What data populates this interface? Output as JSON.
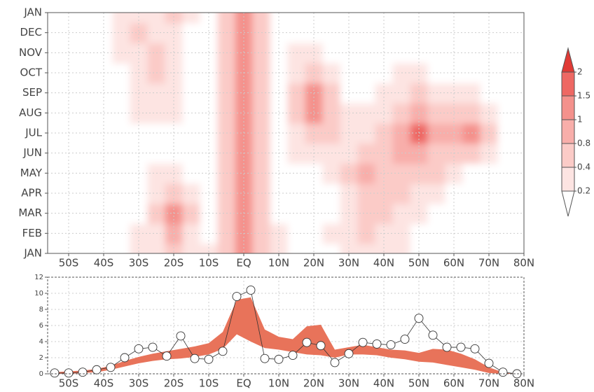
{
  "chart_data": [
    {
      "type": "heatmap",
      "x": [
        -55,
        -50,
        -45,
        -40,
        -35,
        -30,
        -25,
        -20,
        -15,
        -10,
        -5,
        0,
        5,
        10,
        15,
        20,
        25,
        30,
        35,
        40,
        45,
        50,
        55,
        60,
        65,
        70,
        75,
        80
      ],
      "y": [
        0,
        1,
        2,
        3,
        4,
        5,
        6,
        7,
        8,
        9,
        10,
        11,
        12
      ],
      "z": [
        [
          0,
          0,
          0,
          0,
          0,
          0.3,
          0.3,
          0.5,
          0.3,
          0.2,
          0.6,
          1.2,
          0.5,
          0.2,
          0.1,
          0.1,
          0.1,
          0.2,
          0.3,
          0.3,
          0.2,
          0.1,
          0,
          0,
          0,
          0,
          0,
          0
        ],
        [
          0,
          0,
          0,
          0,
          0,
          0.2,
          0.3,
          0.8,
          0.3,
          0.1,
          0.6,
          1.2,
          0.5,
          0.2,
          0.1,
          0.1,
          0.2,
          0.3,
          0.4,
          0.3,
          0.2,
          0.1,
          0,
          0,
          0,
          0,
          0,
          0
        ],
        [
          0,
          0,
          0,
          0,
          0,
          0.1,
          0.4,
          1.2,
          0.4,
          0.1,
          0.5,
          1.2,
          0.5,
          0.1,
          0.1,
          0.1,
          0.1,
          0.3,
          0.5,
          0.4,
          0.3,
          0.2,
          0.1,
          0,
          0,
          0,
          0,
          0
        ],
        [
          0,
          0,
          0,
          0,
          0,
          0.1,
          0.3,
          0.7,
          0.3,
          0.1,
          0.5,
          1.1,
          0.5,
          0.1,
          0.1,
          0.1,
          0.1,
          0.3,
          0.7,
          0.6,
          0.5,
          0.3,
          0.2,
          0.1,
          0,
          0,
          0,
          0
        ],
        [
          0,
          0,
          0,
          0,
          0,
          0.1,
          0.2,
          0.2,
          0.1,
          0,
          0.5,
          1.1,
          0.5,
          0.1,
          0.1,
          0.1,
          0.2,
          0.4,
          0.9,
          0.7,
          0.6,
          0.5,
          0.4,
          0.2,
          0.1,
          0,
          0,
          0
        ],
        [
          0,
          0,
          0,
          0,
          0,
          0,
          0.1,
          0.1,
          0,
          0,
          0.5,
          1.1,
          0.5,
          0.1,
          0.2,
          0.3,
          0.3,
          0.2,
          0.6,
          0.7,
          0.9,
          0.9,
          0.7,
          0.5,
          0.4,
          0.2,
          0,
          0
        ],
        [
          0,
          0,
          0,
          0,
          0,
          0.1,
          0.1,
          0.1,
          0,
          0,
          0.5,
          1.1,
          0.5,
          0.1,
          0.2,
          0.5,
          0.4,
          0.2,
          0.3,
          0.5,
          0.9,
          1.6,
          0.9,
          0.8,
          1.2,
          0.5,
          0.1,
          0
        ],
        [
          0,
          0,
          0,
          0,
          0,
          0.2,
          0.2,
          0.3,
          0,
          0,
          0.5,
          1.1,
          0.5,
          0.1,
          0.4,
          1.2,
          0.6,
          0.2,
          0.2,
          0.3,
          0.5,
          0.9,
          0.6,
          0.5,
          0.6,
          0.3,
          0,
          0
        ],
        [
          0,
          0,
          0,
          0,
          0,
          0.2,
          0.3,
          0.2,
          0,
          0,
          0.5,
          1.1,
          0.5,
          0.1,
          0.5,
          1.0,
          0.5,
          0.1,
          0.1,
          0.2,
          0.3,
          0.4,
          0.3,
          0.3,
          0.2,
          0.1,
          0,
          0
        ],
        [
          0,
          0,
          0,
          0,
          0.1,
          0.3,
          0.4,
          0.2,
          0,
          0,
          0.5,
          1.1,
          0.5,
          0.1,
          0.3,
          0.6,
          0.3,
          0,
          0,
          0.1,
          0.2,
          0.2,
          0.1,
          0.1,
          0,
          0,
          0,
          0
        ],
        [
          0,
          0,
          0,
          0,
          0.2,
          0.3,
          0.5,
          0.3,
          0.1,
          0,
          0.5,
          1.1,
          0.5,
          0.1,
          0.2,
          0.3,
          0.1,
          0,
          0,
          0,
          0.1,
          0.1,
          0,
          0,
          0,
          0,
          0,
          0
        ],
        [
          0,
          0,
          0,
          0,
          0.3,
          0.4,
          0.3,
          0.3,
          0.1,
          0.1,
          0.5,
          1.2,
          0.5,
          0.1,
          0.1,
          0.1,
          0,
          0,
          0,
          0,
          0,
          0,
          0,
          0,
          0,
          0,
          0,
          0
        ],
        [
          0,
          0,
          0,
          0,
          0.3,
          0.3,
          0.3,
          0.4,
          0.3,
          0.1,
          0.6,
          1.2,
          0.5,
          0.1,
          0,
          0,
          0,
          0,
          0,
          0,
          0,
          0,
          0,
          0,
          0,
          0,
          0,
          0
        ]
      ],
      "levels": [
        0.2,
        0.4,
        0.8,
        1,
        1.5,
        2
      ],
      "colors": [
        "#ffffff",
        "#fde4e2",
        "#fbcbc7",
        "#f8aeaa",
        "#f4918c",
        "#ee6863",
        "#e03a35"
      ],
      "xlim": [
        -56,
        80
      ],
      "xticks": [
        {
          "value": -50,
          "label": "50S"
        },
        {
          "value": -40,
          "label": "40S"
        },
        {
          "value": -30,
          "label": "30S"
        },
        {
          "value": -20,
          "label": "20S"
        },
        {
          "value": -10,
          "label": "10S"
        },
        {
          "value": 0,
          "label": "EQ"
        },
        {
          "value": 10,
          "label": "10N"
        },
        {
          "value": 20,
          "label": "20N"
        },
        {
          "value": 30,
          "label": "30N"
        },
        {
          "value": 40,
          "label": "40N"
        },
        {
          "value": 50,
          "label": "50N"
        },
        {
          "value": 60,
          "label": "60N"
        },
        {
          "value": 70,
          "label": "70N"
        },
        {
          "value": 80,
          "label": "80N"
        }
      ],
      "ylim": [
        0,
        12
      ],
      "yticks": [
        {
          "value": 0,
          "label": "JAN"
        },
        {
          "value": 1,
          "label": "FEB"
        },
        {
          "value": 2,
          "label": "MAR"
        },
        {
          "value": 3,
          "label": "APR"
        },
        {
          "value": 4,
          "label": "MAY"
        },
        {
          "value": 5,
          "label": "JUN"
        },
        {
          "value": 6,
          "label": "JUL"
        },
        {
          "value": 7,
          "label": "AUG"
        },
        {
          "value": 8,
          "label": "SEP"
        },
        {
          "value": 9,
          "label": "OCT"
        },
        {
          "value": 10,
          "label": "NOV"
        },
        {
          "value": 11,
          "label": "DEC"
        },
        {
          "value": 12,
          "label": "JAN"
        }
      ],
      "grid": true
    },
    {
      "type": "line",
      "x": [
        -54,
        -50,
        -46,
        -42,
        -38,
        -34,
        -30,
        -26,
        -22,
        -18,
        -14,
        -10,
        -6,
        -2,
        2,
        6,
        10,
        14,
        18,
        22,
        26,
        30,
        34,
        38,
        42,
        46,
        50,
        54,
        58,
        62,
        66,
        70,
        74,
        78
      ],
      "series": [
        {
          "color": "#333333",
          "values": [
            0.1,
            0.1,
            0.2,
            0.5,
            0.8,
            2.0,
            3.1,
            3.3,
            2.2,
            4.7,
            1.9,
            1.8,
            2.8,
            9.6,
            10.4,
            1.9,
            1.8,
            2.3,
            3.9,
            3.5,
            1.4,
            2.5,
            3.9,
            3.7,
            3.6,
            4.3,
            6.9,
            4.8,
            3.3,
            3.3,
            3.1,
            1.3,
            0.2,
            0.0
          ]
        }
      ],
      "band": {
        "color": "#e8735a",
        "lower": [
          0,
          0,
          0.1,
          0.2,
          0.5,
          0.9,
          1.3,
          1.6,
          1.8,
          1.9,
          2.1,
          2.4,
          3.1,
          4.9,
          4.0,
          3.2,
          3.0,
          2.7,
          2.4,
          2.3,
          2.0,
          2.4,
          2.4,
          2.3,
          2.0,
          1.8,
          1.5,
          1.4,
          1.1,
          0.8,
          0.5,
          0.1,
          0,
          0
        ],
        "upper": [
          0.2,
          0.3,
          0.4,
          0.6,
          1.0,
          1.6,
          2.1,
          2.5,
          2.8,
          3.1,
          3.4,
          3.8,
          5.2,
          9.2,
          9.5,
          5.5,
          4.6,
          4.3,
          5.9,
          6.1,
          3.0,
          3.3,
          3.6,
          3.3,
          3.0,
          2.9,
          2.6,
          3.1,
          3.0,
          2.5,
          1.8,
          0.8,
          0.2,
          0
        ]
      },
      "xlim": [
        -56,
        80
      ],
      "xticks": [
        {
          "value": -50,
          "label": "50S"
        },
        {
          "value": -40,
          "label": "40S"
        },
        {
          "value": -30,
          "label": "30S"
        },
        {
          "value": -20,
          "label": "20S"
        },
        {
          "value": -10,
          "label": "10S"
        },
        {
          "value": 0,
          "label": "EQ"
        },
        {
          "value": 10,
          "label": "10N"
        },
        {
          "value": 20,
          "label": "20N"
        },
        {
          "value": 30,
          "label": "30N"
        },
        {
          "value": 40,
          "label": "40N"
        },
        {
          "value": 50,
          "label": "50N"
        },
        {
          "value": 60,
          "label": "60N"
        },
        {
          "value": 70,
          "label": "70N"
        },
        {
          "value": 80,
          "label": "80N"
        }
      ],
      "ylim": [
        0,
        12
      ],
      "yticks": [
        0,
        2,
        4,
        6,
        8,
        10,
        12
      ],
      "grid": true
    }
  ]
}
